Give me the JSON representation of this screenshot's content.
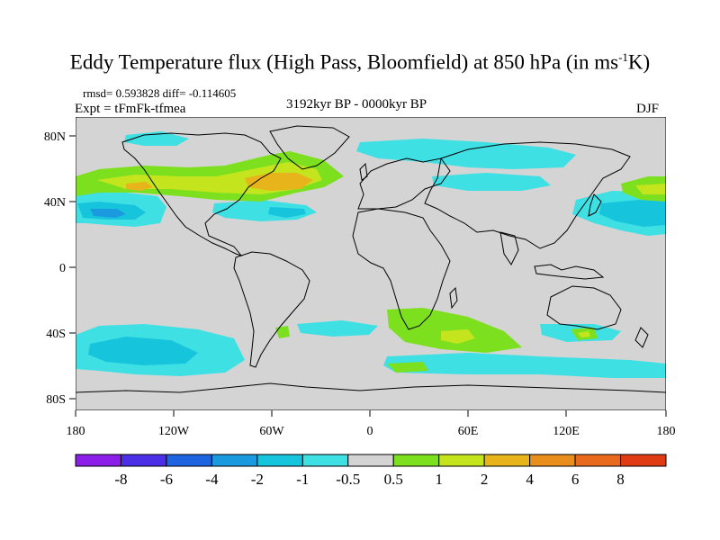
{
  "title": {
    "main": "Eddy Temperature flux (High Pass, Bloomfield) at 850 hPa (in ms",
    "superscript": "-1",
    "suffix": "K)"
  },
  "annotations": {
    "stats": "rmsd= 0.593828 diff= -0.114605",
    "experiment": "Expt = tFmFk-tfmea",
    "period": "3192kyr BP - 0000kyr BP",
    "season": "DJF"
  },
  "axes": {
    "x_ticks": [
      "180",
      "120W",
      "60W",
      "0",
      "60E",
      "120E",
      "180"
    ],
    "y_ticks": [
      "80N",
      "40N",
      "0",
      "40S",
      "80S"
    ]
  },
  "colorbar": {
    "labels": [
      "-8",
      "-6",
      "-4",
      "-2",
      "-1",
      "-0.5",
      "0.5",
      "1",
      "2",
      "4",
      "6",
      "8"
    ],
    "colors": [
      "#8b1ee8",
      "#4a2fe6",
      "#1e64e0",
      "#1c9ae0",
      "#16c4dc",
      "#3ee0e4",
      "#d4d4d4",
      "#7de01e",
      "#c4e41e",
      "#e8b41c",
      "#e88e1c",
      "#e86a1c",
      "#e03c14"
    ]
  },
  "colors": {
    "background_fill": "#d4d4d4",
    "coast": "#000000"
  }
}
